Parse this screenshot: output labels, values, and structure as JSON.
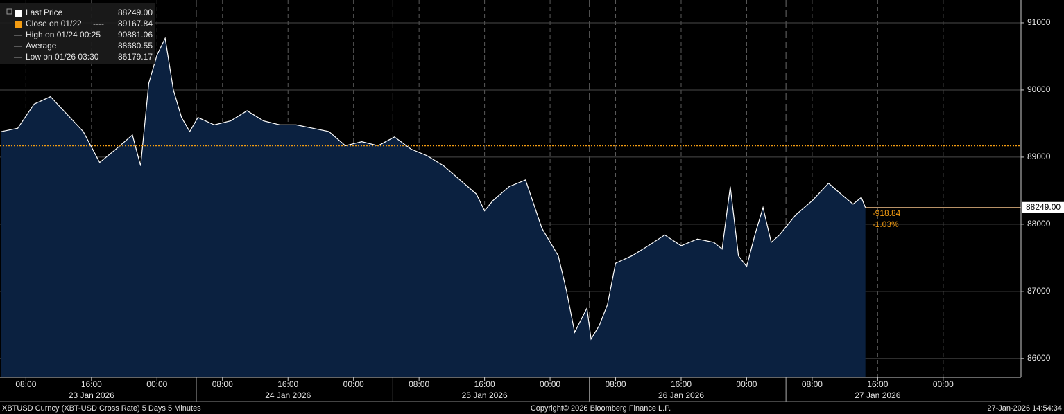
{
  "chart_data": {
    "type": "area",
    "series": [
      {
        "name": "Last Price",
        "color": "#ffffff",
        "fill": "#0b2140",
        "values": [
          89380,
          89430,
          89790,
          89900,
          89640,
          89380,
          88920,
          89120,
          89330,
          88870,
          90100,
          90520,
          90770,
          90000,
          89590,
          89380,
          89590,
          89480,
          89540,
          89690,
          89540,
          89480,
          89480,
          89430,
          89380,
          89170,
          89230,
          89170,
          89300,
          89120,
          89020,
          88870,
          88660,
          88450,
          88200,
          88350,
          88560,
          88660,
          87940,
          87530,
          87010,
          86390,
          86750,
          86290,
          86490,
          86800,
          87420,
          87530,
          87680,
          87840,
          87680,
          87780,
          87730,
          87630,
          88560,
          87530,
          87370,
          87840,
          88250,
          87730,
          87840,
          88140,
          88350,
          88610,
          88400,
          88300,
          88400,
          88249
        ]
      }
    ],
    "x": [
      "2026-01-23 05:00",
      "2026-01-23 07:00",
      "2026-01-23 09:00",
      "2026-01-23 11:00",
      "2026-01-23 13:00",
      "2026-01-23 15:00",
      "2026-01-23 17:00",
      "2026-01-23 19:00",
      "2026-01-23 21:00",
      "2026-01-23 22:00",
      "2026-01-23 23:00",
      "2026-01-24 00:00",
      "2026-01-24 01:00",
      "2026-01-24 02:00",
      "2026-01-24 03:00",
      "2026-01-24 04:00",
      "2026-01-24 05:00",
      "2026-01-24 07:00",
      "2026-01-24 09:00",
      "2026-01-24 11:00",
      "2026-01-24 13:00",
      "2026-01-24 15:00",
      "2026-01-24 17:00",
      "2026-01-24 19:00",
      "2026-01-24 21:00",
      "2026-01-24 23:00",
      "2026-01-25 01:00",
      "2026-01-25 03:00",
      "2026-01-25 05:00",
      "2026-01-25 07:00",
      "2026-01-25 09:00",
      "2026-01-25 11:00",
      "2026-01-25 13:00",
      "2026-01-25 15:00",
      "2026-01-25 16:00",
      "2026-01-25 17:00",
      "2026-01-25 19:00",
      "2026-01-25 21:00",
      "2026-01-25 23:00",
      "2026-01-26 01:00",
      "2026-01-26 02:00",
      "2026-01-26 03:00",
      "2026-01-26 04:30",
      "2026-01-26 05:00",
      "2026-01-26 06:00",
      "2026-01-26 07:00",
      "2026-01-26 08:00",
      "2026-01-26 10:00",
      "2026-01-26 12:00",
      "2026-01-26 14:00",
      "2026-01-26 16:00",
      "2026-01-26 18:00",
      "2026-01-26 20:00",
      "2026-01-26 21:00",
      "2026-01-26 22:00",
      "2026-01-26 23:00",
      "2026-01-27 00:00",
      "2026-01-27 01:00",
      "2026-01-27 02:00",
      "2026-01-27 03:00",
      "2026-01-27 04:00",
      "2026-01-27 06:00",
      "2026-01-27 08:00",
      "2026-01-27 10:00",
      "2026-01-27 12:00",
      "2026-01-27 13:00",
      "2026-01-27 14:00",
      "2026-01-27 14:30"
    ],
    "xlim": [
      "2026-01-23 04:50",
      "2026-01-28 09:30"
    ],
    "xticks": [
      {
        "value": "2026-01-23 08:00",
        "label": "08:00"
      },
      {
        "value": "2026-01-23 16:00",
        "label": "16:00"
      },
      {
        "value": "2026-01-24 00:00",
        "label": "00:00"
      },
      {
        "value": "2026-01-24 08:00",
        "label": "08:00"
      },
      {
        "value": "2026-01-24 16:00",
        "label": "16:00"
      },
      {
        "value": "2026-01-25 00:00",
        "label": "00:00"
      },
      {
        "value": "2026-01-25 08:00",
        "label": "08:00"
      },
      {
        "value": "2026-01-25 16:00",
        "label": "16:00"
      },
      {
        "value": "2026-01-26 00:00",
        "label": "00:00"
      },
      {
        "value": "2026-01-26 08:00",
        "label": "08:00"
      },
      {
        "value": "2026-01-26 16:00",
        "label": "16:00"
      },
      {
        "value": "2026-01-27 00:00",
        "label": "00:00"
      },
      {
        "value": "2026-01-27 08:00",
        "label": "08:00"
      },
      {
        "value": "2026-01-27 16:00",
        "label": "16:00"
      },
      {
        "value": "2026-01-28 00:00",
        "label": "00:00"
      }
    ],
    "date_labels": [
      "23 Jan 2026",
      "24 Jan 2026",
      "25 Jan 2026",
      "26 Jan 2026",
      "27 Jan 2026"
    ],
    "ylim": [
      85720,
      91340
    ],
    "yticks": [
      86000,
      87000,
      88000,
      89000,
      90000,
      91000
    ],
    "grid": true,
    "close": {
      "value": 89167.84,
      "color": "#f39c12"
    },
    "last_price": {
      "value": 88249,
      "label": "88249.00"
    },
    "change": -918.84,
    "change_pct": {
      "value": -1.03,
      "label": "-1.03%"
    },
    "legend": [
      {
        "name": "Last Price",
        "value": 88249,
        "value_label": "88249.00"
      },
      {
        "name": "Close on 01/22",
        "dash": "----",
        "value": 89167.84
      },
      {
        "name": "High on 01/24 00:25",
        "value": 90881.06
      },
      {
        "name": "Average",
        "value": 88680.55
      },
      {
        "name": "Low on 01/26 03:30",
        "value": 86179.17
      }
    ],
    "footer": {
      "left": "XBTUSD Curncy (XBT-USD Cross Rate) 5 Days 5 Minutes",
      "center": "Copyright© 2026 Bloomberg Finance L.P.",
      "right": "27-Jan-2026 14:54:34"
    }
  }
}
